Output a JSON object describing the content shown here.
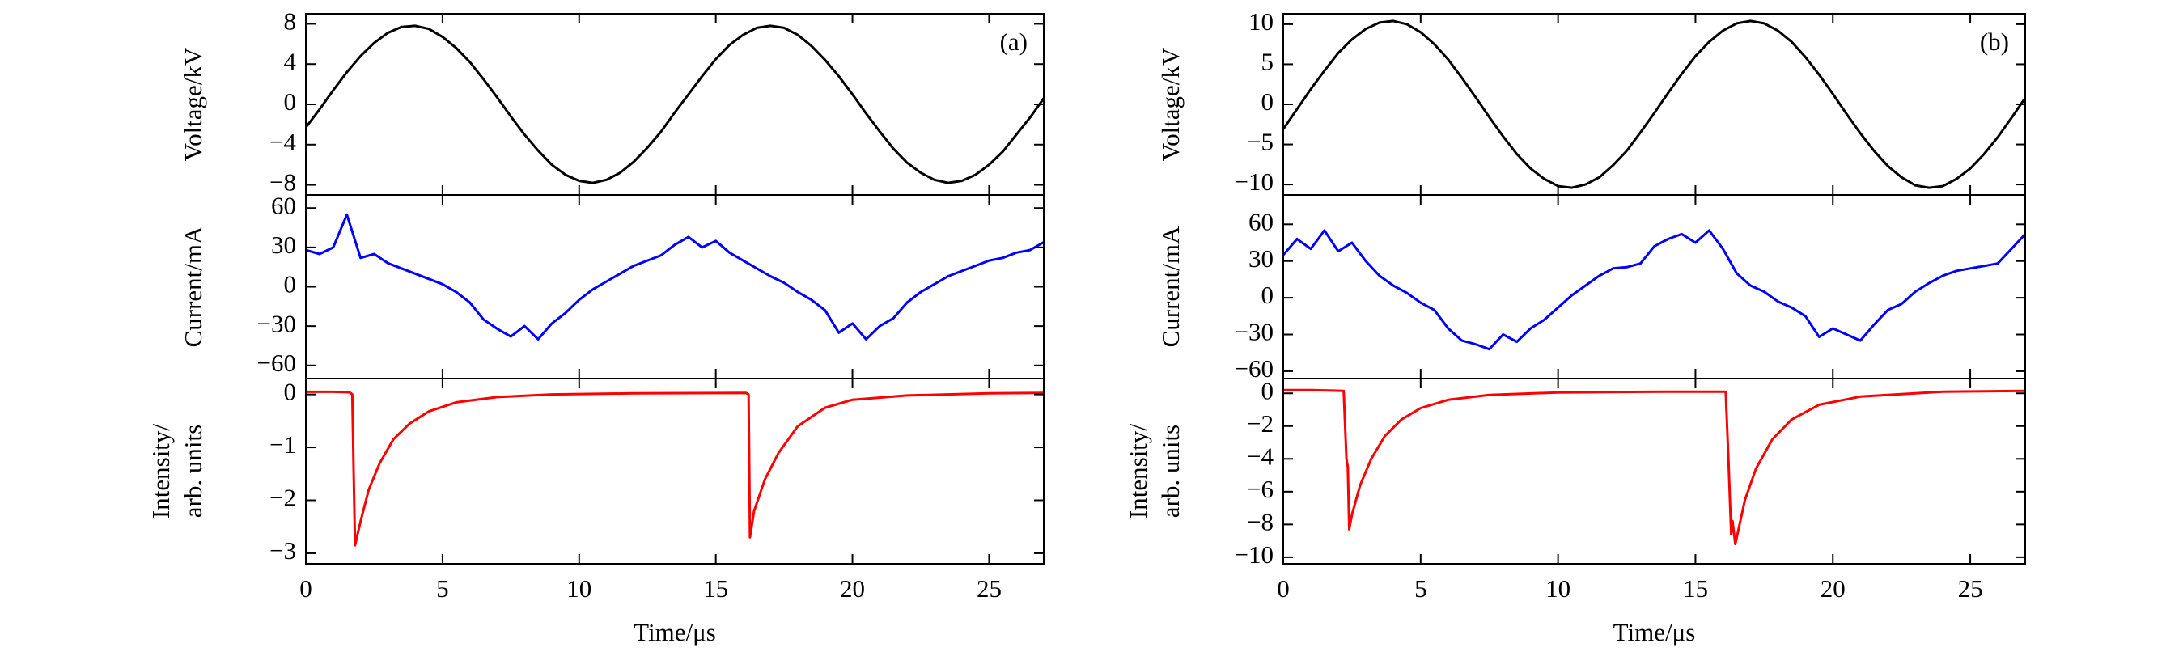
{
  "chart_data": [
    {
      "type": "line",
      "ylabel": [
        "Voltage/kV"
      ],
      "annotation": "(a)",
      "color": "#000000",
      "x": [
        0,
        0.5,
        1,
        1.5,
        2,
        2.5,
        3,
        3.5,
        4,
        4.5,
        5,
        5.5,
        6,
        6.5,
        7,
        7.5,
        8,
        8.5,
        9,
        9.5,
        10,
        10.5,
        11,
        11.5,
        12,
        12.5,
        13,
        13.5,
        14,
        14.5,
        15,
        15.5,
        16,
        16.5,
        17,
        17.5,
        18,
        18.5,
        19,
        19.5,
        20,
        20.5,
        21,
        21.5,
        22,
        22.5,
        23,
        23.5,
        24,
        24.5,
        25,
        25.5,
        26,
        26.5,
        27
      ],
      "values": [
        -2.3,
        -0.5,
        1.4,
        3.2,
        4.8,
        6.1,
        7.1,
        7.7,
        7.8,
        7.5,
        6.7,
        5.6,
        4.2,
        2.5,
        0.7,
        -1.2,
        -3.0,
        -4.6,
        -6.0,
        -7.0,
        -7.6,
        -7.8,
        -7.5,
        -6.8,
        -5.7,
        -4.3,
        -2.7,
        -0.8,
        1.0,
        2.8,
        4.5,
        5.9,
        6.9,
        7.6,
        7.8,
        7.6,
        6.9,
        5.8,
        4.4,
        2.8,
        1.0,
        -0.9,
        -2.7,
        -4.4,
        -5.8,
        -6.8,
        -7.5,
        -7.8,
        -7.6,
        -7.0,
        -6.0,
        -4.7,
        -3.0,
        -1.3,
        0.6
      ],
      "xlim": [
        0,
        27
      ],
      "xticks": [
        0,
        5,
        10,
        15,
        20,
        25
      ],
      "ylim": [
        -9,
        9
      ],
      "yticks": [
        {
          "value": -8,
          "label": "−8"
        },
        {
          "value": -4,
          "label": "−4"
        },
        0,
        4,
        8
      ]
    },
    {
      "type": "line",
      "ylabel": [
        "Current/mA"
      ],
      "color": "#0000ff",
      "x": [
        0,
        0.5,
        1,
        1.5,
        2,
        2.5,
        3,
        3.5,
        4,
        4.5,
        5,
        5.5,
        6,
        6.5,
        7,
        7.5,
        8,
        8.5,
        9,
        9.5,
        10,
        10.5,
        11,
        11.5,
        12,
        12.5,
        13,
        13.5,
        14,
        14.5,
        15,
        15.5,
        16,
        16.5,
        17,
        17.5,
        18,
        18.5,
        19,
        19.5,
        20,
        20.5,
        21,
        21.5,
        22,
        22.5,
        23,
        23.5,
        24,
        24.5,
        25,
        25.5,
        26,
        26.5,
        27
      ],
      "values": [
        28,
        25,
        30,
        55,
        22,
        25,
        18,
        14,
        10,
        6,
        2,
        -4,
        -12,
        -25,
        -32,
        -38,
        -30,
        -40,
        -28,
        -20,
        -10,
        -2,
        4,
        10,
        16,
        20,
        24,
        32,
        38,
        30,
        35,
        26,
        20,
        14,
        8,
        3,
        -4,
        -10,
        -18,
        -35,
        -28,
        -40,
        -30,
        -24,
        -12,
        -4,
        2,
        8,
        12,
        16,
        20,
        22,
        26,
        28,
        34
      ],
      "xlim": [
        0,
        27
      ],
      "xticks": [
        0,
        5,
        10,
        15,
        20,
        25
      ],
      "ylim": [
        -70,
        70
      ],
      "yticks": [
        {
          "value": -60,
          "label": "−60"
        },
        {
          "value": -30,
          "label": "−30"
        },
        0,
        30,
        60
      ]
    },
    {
      "type": "line",
      "ylabel": [
        "Intensity/",
        "arb. units"
      ],
      "xlabel": "Time/μs",
      "color": "#ff0000",
      "x": [
        0,
        1,
        1.6,
        1.7,
        1.75,
        1.8,
        2,
        2.3,
        2.7,
        3.2,
        3.8,
        4.5,
        5.5,
        7,
        9,
        12,
        16.1,
        16.2,
        16.25,
        16.4,
        16.8,
        17.3,
        18,
        19,
        20,
        22,
        25,
        27
      ],
      "values": [
        0.05,
        0.05,
        0.04,
        0.0,
        -1.5,
        -2.85,
        -2.4,
        -1.8,
        -1.3,
        -0.85,
        -0.55,
        -0.32,
        -0.15,
        -0.05,
        0.0,
        0.02,
        0.03,
        0.0,
        -2.7,
        -2.2,
        -1.6,
        -1.1,
        -0.6,
        -0.25,
        -0.1,
        -0.02,
        0.02,
        0.03
      ],
      "xlim": [
        0,
        27
      ],
      "xticks": [
        0,
        5,
        10,
        15,
        20,
        25
      ],
      "ylim": [
        -3.2,
        0.3
      ],
      "yticks": [
        {
          "value": -3,
          "label": "−3"
        },
        {
          "value": -2,
          "label": "−2"
        },
        {
          "value": -1,
          "label": "−1"
        },
        0
      ]
    },
    {
      "type": "line",
      "ylabel": [
        "Voltage/kV"
      ],
      "annotation": "(b)",
      "color": "#000000",
      "x": [
        0,
        0.5,
        1,
        1.5,
        2,
        2.5,
        3,
        3.5,
        4,
        4.5,
        5,
        5.5,
        6,
        6.5,
        7,
        7.5,
        8,
        8.5,
        9,
        9.5,
        10,
        10.5,
        11,
        11.5,
        12,
        12.5,
        13,
        13.5,
        14,
        14.5,
        15,
        15.5,
        16,
        16.5,
        17,
        17.5,
        18,
        18.5,
        19,
        19.5,
        20,
        20.5,
        21,
        21.5,
        22,
        22.5,
        23,
        23.5,
        24,
        24.5,
        25,
        25.5,
        26,
        26.5,
        27
      ],
      "values": [
        -3.1,
        -0.6,
        1.9,
        4.2,
        6.4,
        8.1,
        9.4,
        10.2,
        10.4,
        10.0,
        9.0,
        7.5,
        5.6,
        3.3,
        0.9,
        -1.6,
        -4.0,
        -6.2,
        -8.0,
        -9.3,
        -10.2,
        -10.4,
        -10.0,
        -9.1,
        -7.6,
        -5.8,
        -3.5,
        -1.1,
        1.4,
        3.8,
        6.0,
        7.8,
        9.2,
        10.1,
        10.4,
        10.1,
        9.2,
        7.8,
        5.9,
        3.7,
        1.3,
        -1.2,
        -3.6,
        -5.8,
        -7.7,
        -9.1,
        -10.1,
        -10.4,
        -10.2,
        -9.3,
        -8.0,
        -6.2,
        -4.1,
        -1.7,
        0.8
      ],
      "xlim": [
        0,
        27
      ],
      "xticks": [
        0,
        5,
        10,
        15,
        20,
        25
      ],
      "ylim": [
        -11.3,
        11.3
      ],
      "yticks": [
        {
          "value": -10,
          "label": "−10"
        },
        {
          "value": -5,
          "label": "−5"
        },
        0,
        5,
        10
      ]
    },
    {
      "type": "line",
      "ylabel": [
        "Current/mA"
      ],
      "color": "#0000ff",
      "x": [
        0,
        0.5,
        1,
        1.5,
        2,
        2.5,
        3,
        3.5,
        4,
        4.5,
        5,
        5.5,
        6,
        6.5,
        7,
        7.5,
        8,
        8.5,
        9,
        9.5,
        10,
        10.5,
        11,
        11.5,
        12,
        12.5,
        13,
        13.5,
        14,
        14.5,
        15,
        15.5,
        16,
        16.5,
        17,
        17.5,
        18,
        18.5,
        19,
        19.5,
        20,
        20.5,
        21,
        21.5,
        22,
        22.5,
        23,
        23.5,
        24,
        24.5,
        25,
        25.5,
        26,
        26.5,
        27
      ],
      "values": [
        35,
        48,
        40,
        55,
        38,
        45,
        30,
        18,
        10,
        4,
        -4,
        -10,
        -25,
        -35,
        -38,
        -42,
        -30,
        -36,
        -25,
        -18,
        -8,
        2,
        10,
        18,
        24,
        25,
        28,
        42,
        48,
        52,
        45,
        55,
        40,
        20,
        10,
        5,
        -3,
        -8,
        -15,
        -32,
        -25,
        -30,
        -35,
        -22,
        -10,
        -5,
        5,
        12,
        18,
        22,
        24,
        26,
        28,
        40,
        52
      ],
      "xlim": [
        0,
        27
      ],
      "xticks": [
        0,
        5,
        10,
        15,
        20,
        25
      ],
      "ylim": [
        -66,
        84
      ],
      "yticks": [
        {
          "value": -60,
          "label": "−60"
        },
        {
          "value": -30,
          "label": "−30"
        },
        0,
        30,
        60
      ]
    },
    {
      "type": "line",
      "ylabel": [
        "Intensity/",
        "arb. units"
      ],
      "xlabel": "Time/μs",
      "color": "#ff0000",
      "x": [
        0,
        1,
        2.2,
        2.3,
        2.35,
        2.4,
        2.5,
        2.8,
        3.2,
        3.7,
        4.3,
        5,
        6,
        7.5,
        10,
        14,
        16.1,
        16.2,
        16.3,
        16.35,
        16.45,
        16.8,
        17.2,
        17.8,
        18.5,
        19.5,
        21,
        24,
        27
      ],
      "values": [
        0.2,
        0.2,
        0.15,
        -4.0,
        -4.5,
        -8.3,
        -7.4,
        -5.6,
        -4.0,
        -2.6,
        -1.6,
        -0.9,
        -0.4,
        -0.1,
        0.05,
        0.1,
        0.1,
        -4.0,
        -8.6,
        -7.8,
        -9.2,
        -6.5,
        -4.6,
        -2.8,
        -1.6,
        -0.7,
        -0.2,
        0.1,
        0.15
      ],
      "xlim": [
        0,
        27
      ],
      "xticks": [
        0,
        5,
        10,
        15,
        20,
        25
      ],
      "ylim": [
        -10.4,
        0.9
      ],
      "yticks": [
        {
          "value": -10,
          "label": "−10"
        },
        {
          "value": -8,
          "label": "−8"
        },
        {
          "value": -6,
          "label": "−6"
        },
        {
          "value": -4,
          "label": "−4"
        },
        {
          "value": -2,
          "label": "−2"
        },
        0
      ]
    }
  ]
}
